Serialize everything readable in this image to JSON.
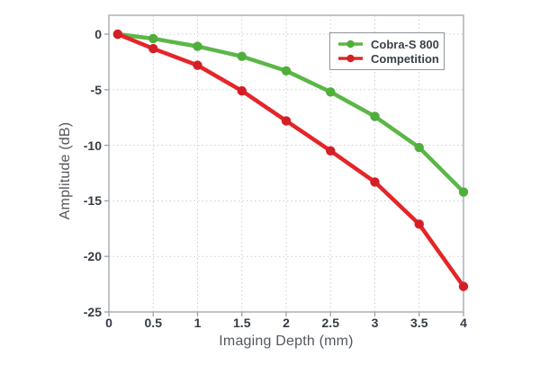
{
  "chart_data": {
    "type": "line",
    "title": "",
    "xlabel": "Imaging Depth (mm)",
    "ylabel": "Amplitude (dB)",
    "x": [
      0.1,
      0.5,
      1,
      1.5,
      2,
      2.5,
      3,
      3.5,
      4
    ],
    "series": [
      {
        "name": "Cobra-S 800",
        "color": "#5bb747",
        "marker_color": "#4fae3c",
        "values": [
          0,
          -0.4,
          -1.1,
          -2.0,
          -3.3,
          -5.2,
          -7.4,
          -10.2,
          -14.2
        ]
      },
      {
        "name": "Competition",
        "color": "#e52528",
        "marker_color": "#d41f26",
        "values": [
          0,
          -1.3,
          -2.8,
          -5.1,
          -7.8,
          -10.5,
          -13.3,
          -17.1,
          -22.7
        ]
      }
    ],
    "xlim": [
      0,
      4
    ],
    "ylim": [
      -25,
      1.7
    ],
    "x_tick_values": [
      0,
      0.5,
      1,
      1.5,
      2,
      2.5,
      3,
      3.5,
      4
    ],
    "x_ticks": [
      "0",
      "0.5",
      "1",
      "1.5",
      "2",
      "2.5",
      "3",
      "3.5",
      "4"
    ],
    "y_tick_values": [
      0,
      -5,
      -10,
      -15,
      -20,
      -25
    ],
    "y_ticks": [
      "0",
      "-5",
      "-10",
      "-15",
      "-20",
      "-25"
    ],
    "grid": true,
    "legend_position": "top-right"
  },
  "colors": {
    "frame": "#a6abaf",
    "gridline": "#c9cdd1",
    "tick_label": "#353c45",
    "axis_title": "#54585d",
    "legend_text": "#3a4149",
    "background": "#ffffff"
  }
}
